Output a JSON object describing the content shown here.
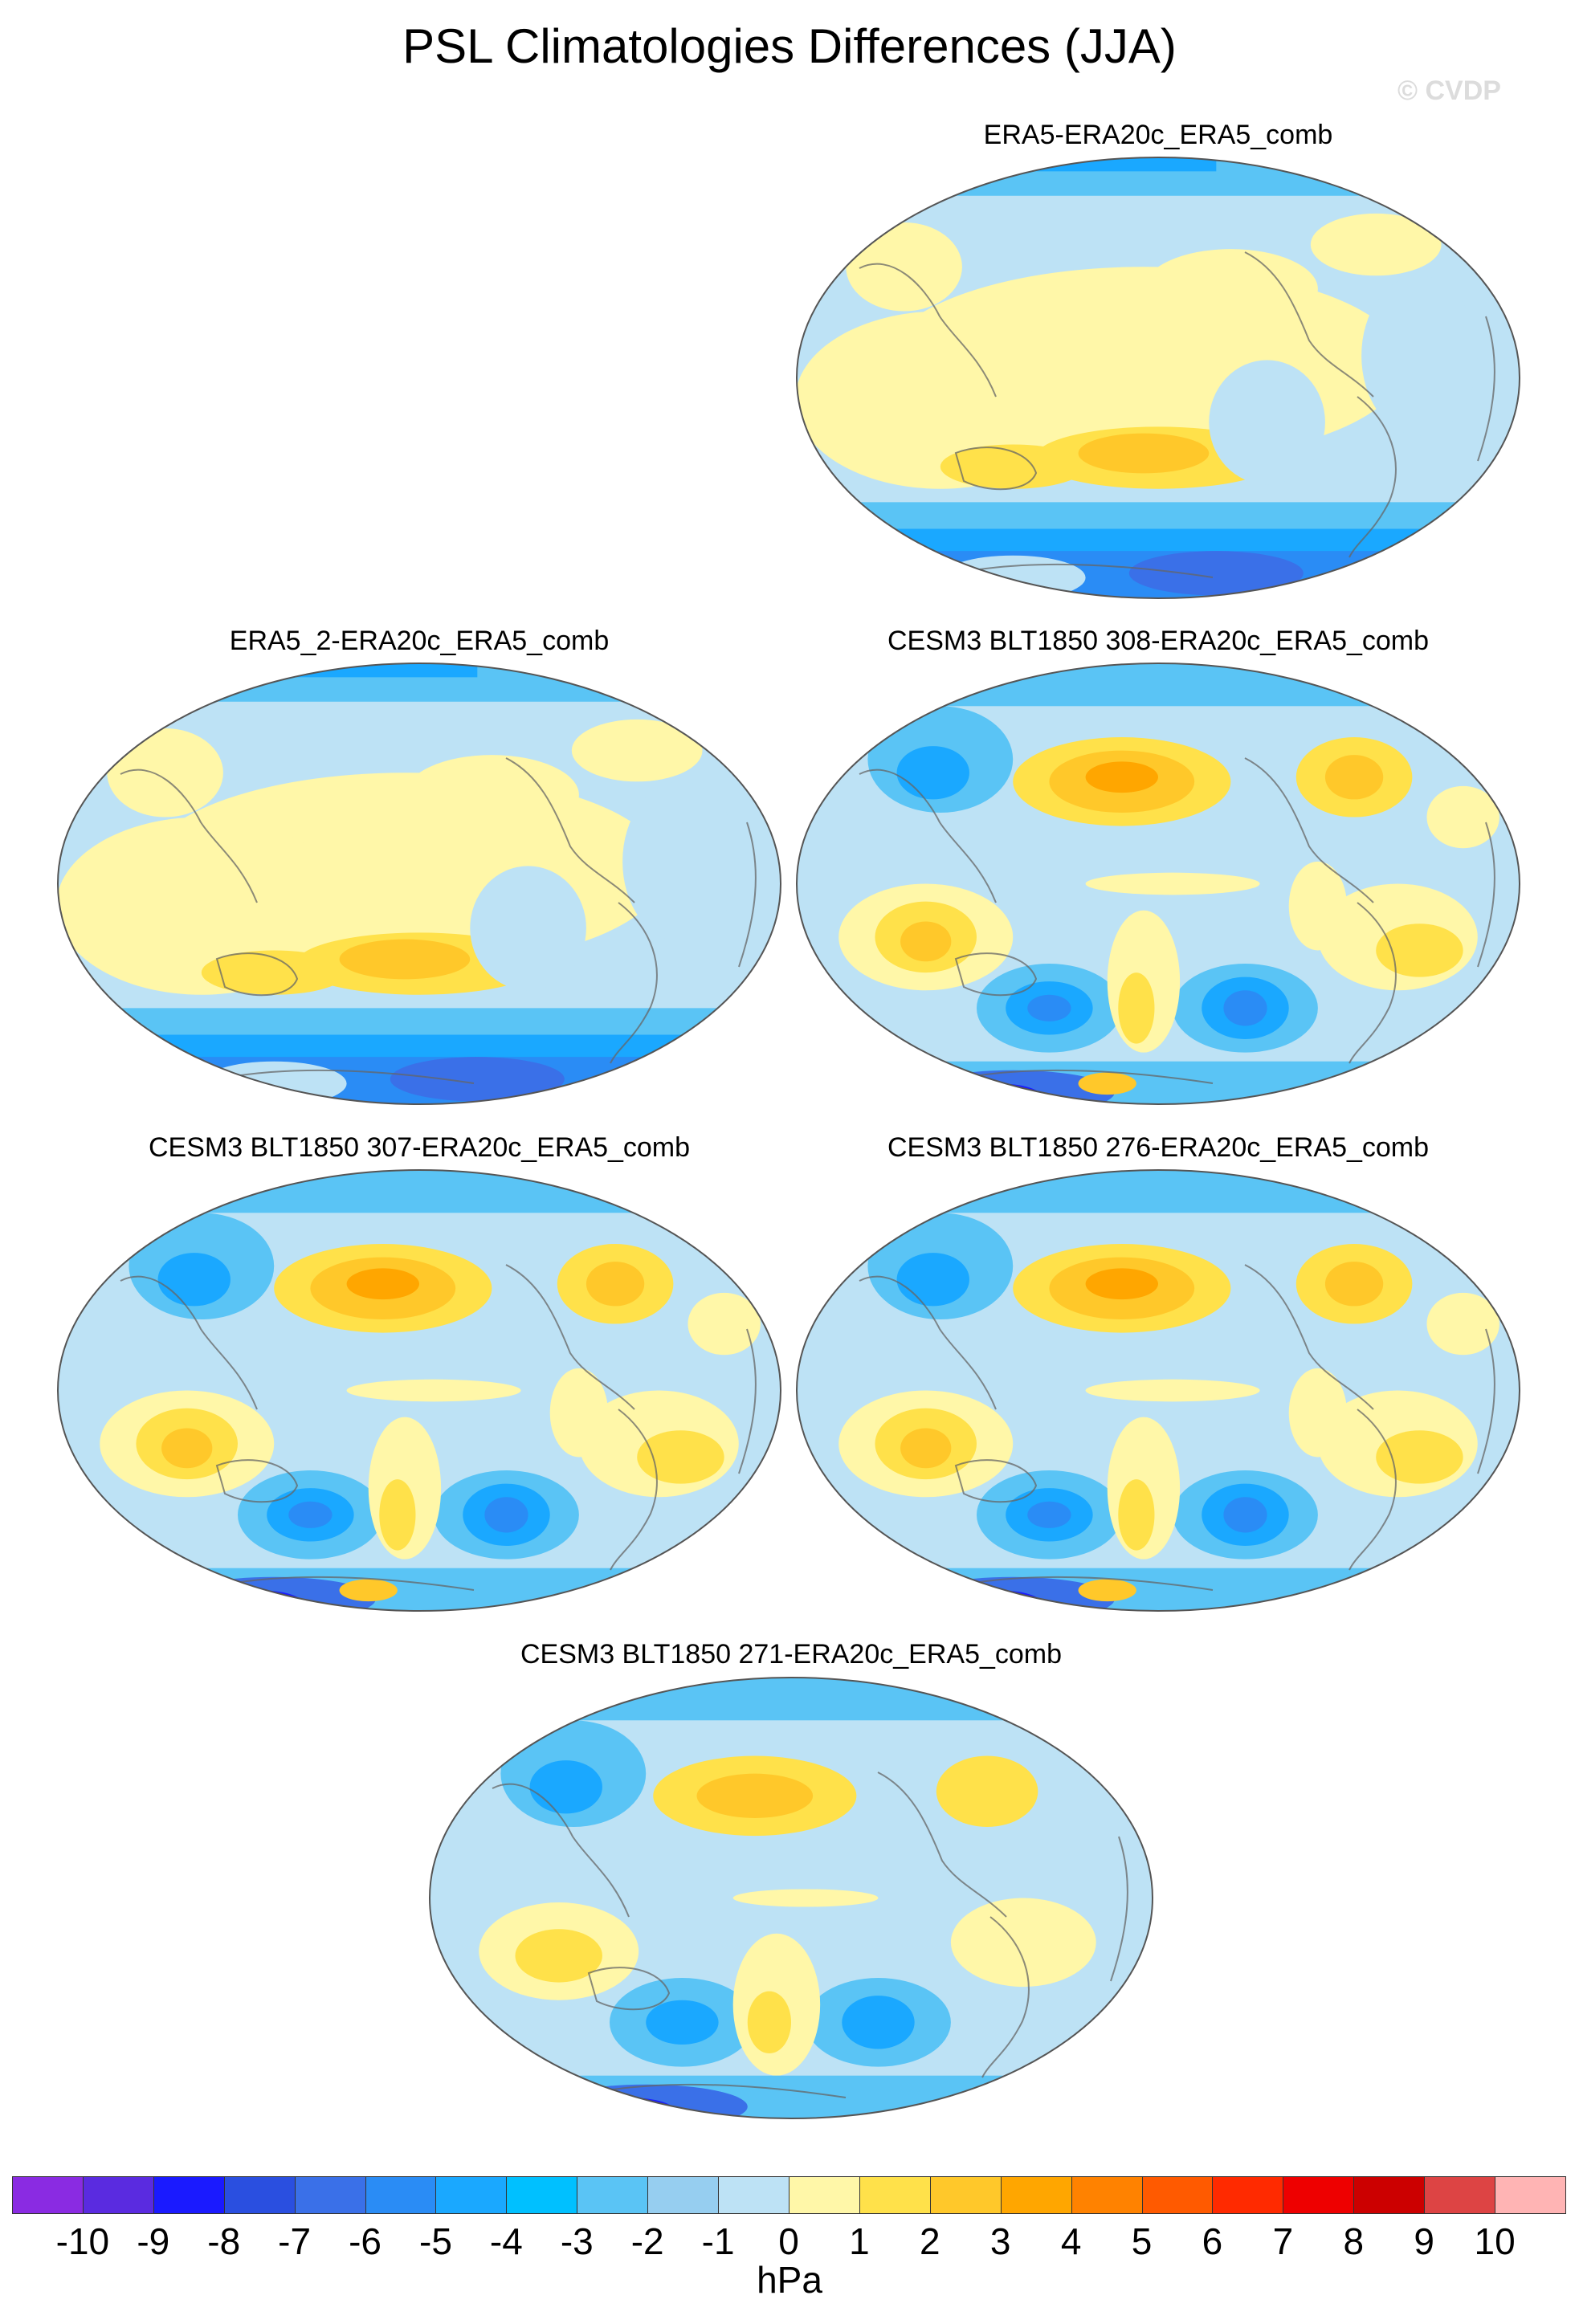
{
  "title": "PSL Climatologies Differences (JJA)",
  "watermark": "© CVDP",
  "panels": [
    {
      "caption": "ERA5-ERA20c_ERA5_comb",
      "pattern": "reanalysis"
    },
    {
      "caption": "ERA5_2-ERA20c_ERA5_comb",
      "pattern": "reanalysis"
    },
    {
      "caption": "CESM3 BLT1850 308-ERA20c_ERA5_comb",
      "pattern": "model"
    },
    {
      "caption": "CESM3 BLT1850 307-ERA20c_ERA5_comb",
      "pattern": "model"
    },
    {
      "caption": "CESM3 BLT1850 276-ERA20c_ERA5_comb",
      "pattern": "model"
    },
    {
      "caption": "CESM3 BLT1850 271-ERA20c_ERA5_comb",
      "pattern": "model-weak"
    }
  ],
  "colorbar": {
    "colors": [
      "#8a2be2",
      "#5a2be0",
      "#1a1aff",
      "#2a4fe0",
      "#3a70e8",
      "#2a8cf5",
      "#1aa8ff",
      "#00c0ff",
      "#5ac4f5",
      "#96cef0",
      "#bde2f5",
      "#fff7a8",
      "#ffe14a",
      "#ffc82a",
      "#ffa600",
      "#ff8200",
      "#ff5a00",
      "#ff2a00",
      "#ee0000",
      "#cc0000",
      "#dd4444",
      "#ffb4b4"
    ],
    "ticks": [
      "-10",
      "-9",
      "-8",
      "-7",
      "-6",
      "-5",
      "-4",
      "-3",
      "-2",
      "-1",
      "0",
      "1",
      "2",
      "3",
      "4",
      "5",
      "6",
      "7",
      "8",
      "9",
      "10"
    ],
    "units": "hPa"
  }
}
